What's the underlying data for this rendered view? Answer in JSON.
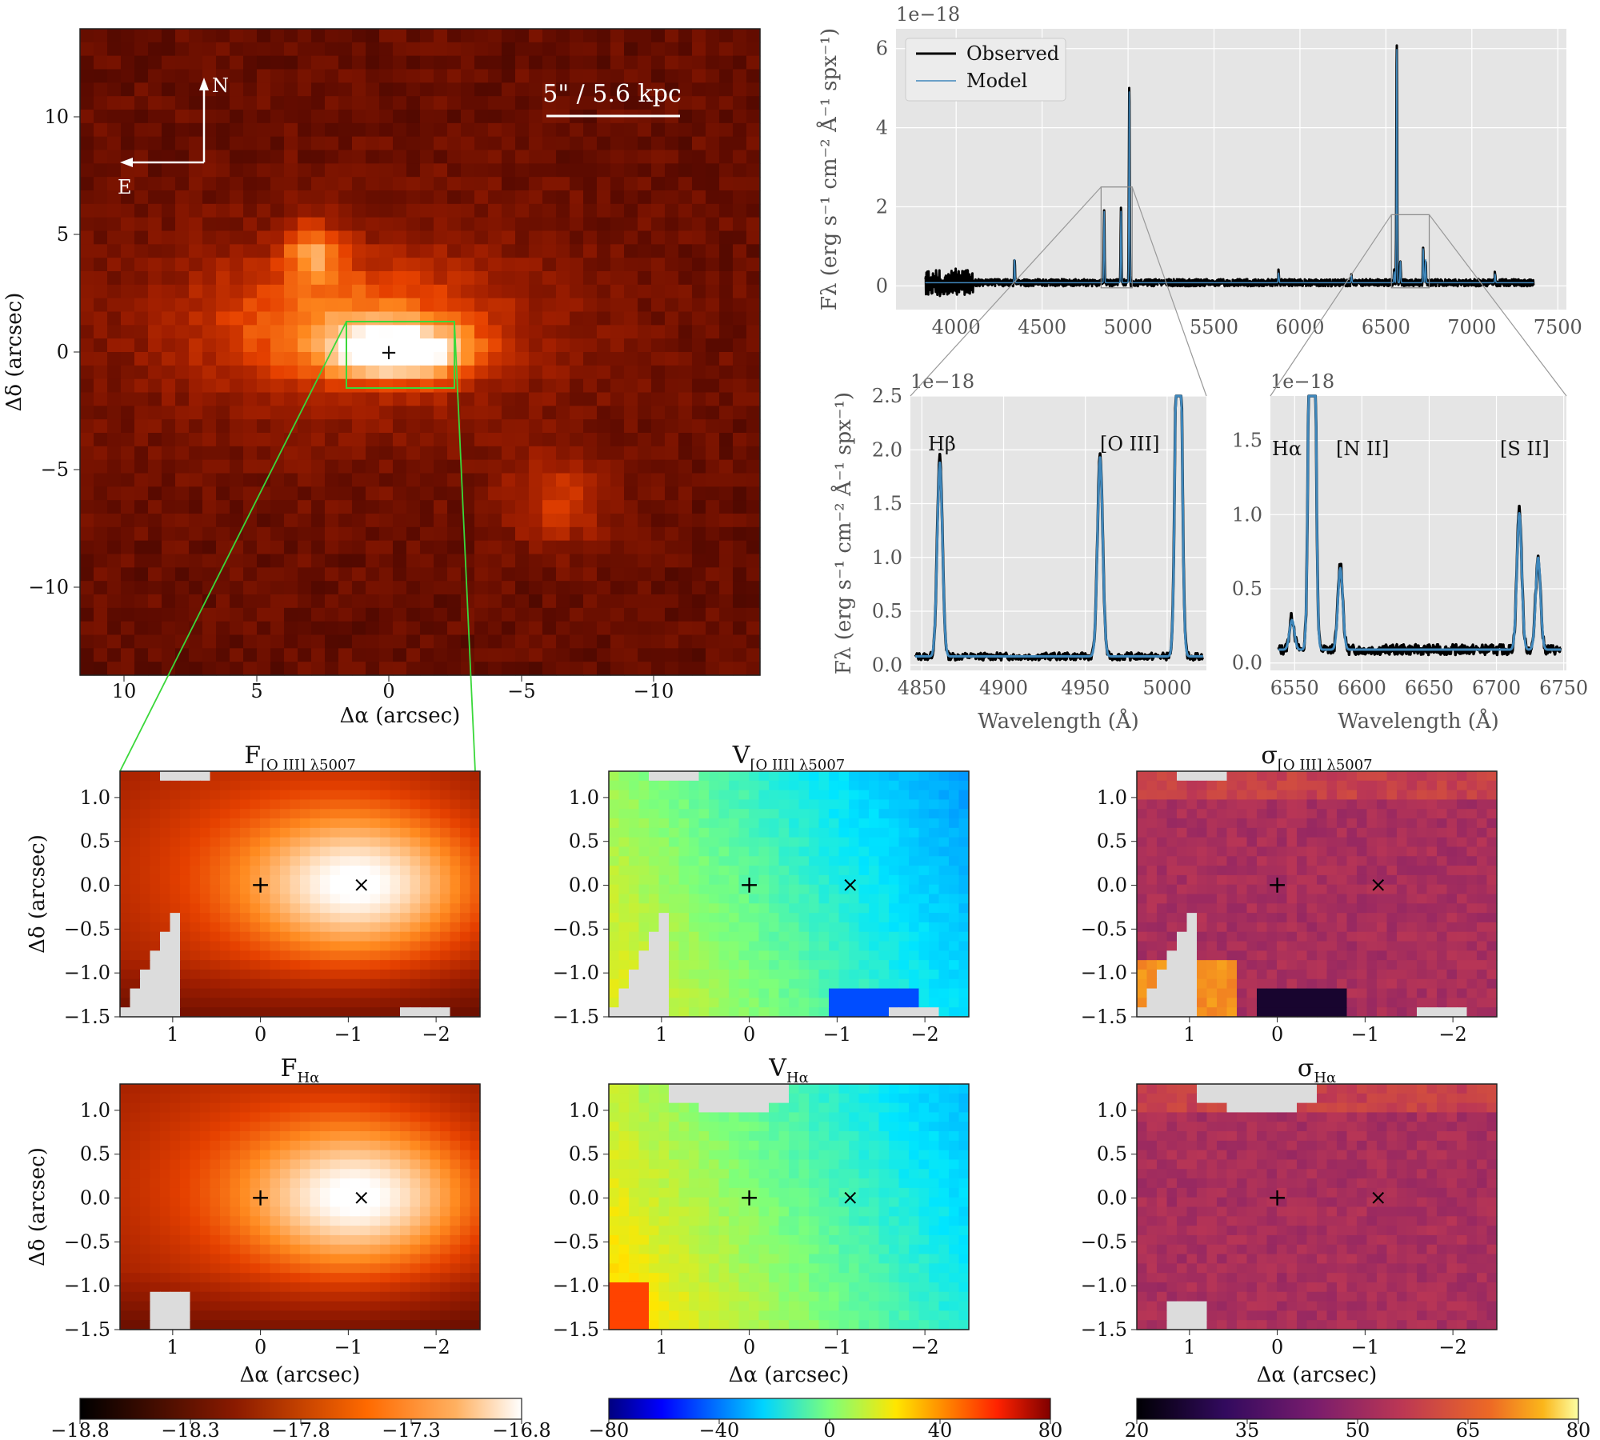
{
  "image_panel": {
    "xlabel": "Δα (arcsec)",
    "ylabel": "Δδ (arcsec)",
    "xticks": [
      "10",
      "5",
      "0",
      "−5",
      "−10"
    ],
    "yticks": [
      "10",
      "5",
      "0",
      "−5",
      "−10"
    ],
    "compass_n": "N",
    "compass_e": "E",
    "scalebar": "5\" / 5.6 kpc"
  },
  "chart_data": [
    {
      "type": "line",
      "id": "full_spectrum",
      "offset_label": "1e−18",
      "ylabel": "Fλ (erg s⁻¹ cm⁻² Å⁻¹ spx⁻¹)",
      "xlim": [
        3650,
        7550
      ],
      "ylim": [
        -0.6,
        6.5
      ],
      "xticks": [
        4000,
        4500,
        5000,
        5500,
        6000,
        6500,
        7000,
        7500
      ],
      "yticks": [
        0,
        2,
        4,
        6
      ],
      "legend": {
        "position": "top-left",
        "entries": [
          "Observed",
          "Model"
        ]
      },
      "series": [
        {
          "name": "Observed",
          "color": "#000000",
          "continuum": 0.08,
          "lines": [
            [
              4340,
              0.65
            ],
            [
              4861,
              1.82
            ],
            [
              4959,
              1.88
            ],
            [
              5007,
              5.0
            ],
            [
              5876,
              0.28
            ],
            [
              6300,
              0.2
            ],
            [
              6548,
              0.3
            ],
            [
              6563,
              6.1
            ],
            [
              6584,
              0.55
            ],
            [
              6717,
              0.9
            ],
            [
              6731,
              0.6
            ],
            [
              7135,
              0.25
            ]
          ]
        },
        {
          "name": "Model",
          "color": "#3f87bb",
          "continuum": 0.08,
          "lines": [
            [
              4340,
              0.6
            ],
            [
              4861,
              1.8
            ],
            [
              4959,
              1.85
            ],
            [
              5007,
              4.95
            ],
            [
              5876,
              0.25
            ],
            [
              6300,
              0.18
            ],
            [
              6548,
              0.28
            ],
            [
              6563,
              6.05
            ],
            [
              6584,
              0.55
            ],
            [
              6717,
              0.88
            ],
            [
              6731,
              0.6
            ],
            [
              7135,
              0.22
            ]
          ]
        }
      ]
    },
    {
      "type": "line",
      "id": "zoom_hbeta_oiii",
      "offset_label": "1e−18",
      "xlabel": "Wavelength (Å)",
      "ylabel": "Fλ (erg s⁻¹ cm⁻² Å⁻¹ spx⁻¹)",
      "xlim": [
        4843,
        5024
      ],
      "ylim": [
        -0.05,
        2.5
      ],
      "xticks": [
        4850,
        4900,
        4950,
        5000
      ],
      "yticks": [
        0.0,
        0.5,
        1.0,
        1.5,
        2.0,
        2.5
      ],
      "annotations": [
        "Hβ",
        "[O III]"
      ],
      "series": [
        {
          "name": "Observed",
          "color": "#000000",
          "continuum": 0.08,
          "lines": [
            [
              4861,
              1.85
            ],
            [
              4959,
              1.88
            ],
            [
              5007,
              5.0
            ]
          ]
        },
        {
          "name": "Model",
          "color": "#3f87bb",
          "continuum": 0.08,
          "lines": [
            [
              4861,
              1.8
            ],
            [
              4959,
              1.85
            ],
            [
              5007,
              4.95
            ]
          ]
        }
      ]
    },
    {
      "type": "line",
      "id": "zoom_halpha_nii_sii",
      "offset_label": "1e−18",
      "xlabel": "Wavelength (Å)",
      "xlim": [
        6532,
        6752
      ],
      "ylim": [
        -0.05,
        1.8
      ],
      "xticks": [
        6550,
        6600,
        6650,
        6700,
        6750
      ],
      "yticks": [
        0.0,
        0.5,
        1.0,
        1.5
      ],
      "annotations": [
        "Hα",
        "[N II]",
        "[S II]"
      ],
      "series": [
        {
          "name": "Observed",
          "color": "#000000",
          "continuum": 0.09,
          "lines": [
            [
              6548,
              0.22
            ],
            [
              6563,
              6.1
            ],
            [
              6584,
              0.58
            ],
            [
              6717,
              0.95
            ],
            [
              6731,
              0.63
            ]
          ]
        },
        {
          "name": "Model",
          "color": "#3f87bb",
          "continuum": 0.09,
          "lines": [
            [
              6548,
              0.2
            ],
            [
              6563,
              6.05
            ],
            [
              6584,
              0.55
            ],
            [
              6717,
              0.92
            ],
            [
              6731,
              0.62
            ]
          ]
        }
      ]
    },
    {
      "type": "heatmap",
      "id": "maps",
      "xlim": [
        1.6,
        -2.5
      ],
      "ylim": [
        -1.5,
        1.3
      ],
      "xticks": [
        "1",
        "0",
        "−1",
        "−2"
      ],
      "yticks": [
        "1.0",
        "0.5",
        "0.0",
        "−0.5",
        "−1.0",
        "−1.5"
      ],
      "xlabel": "Δα (arcsec)",
      "ylabel": "Δδ (arcsec)",
      "ylabel_bottom": "Δδ  (arcsec)",
      "peak_offset": [
        -1.15,
        0.0
      ],
      "panels": [
        {
          "title": "F",
          "sub": "[O III] λ5007",
          "cmap": "gist_heat"
        },
        {
          "title": "V",
          "sub": "[O III] λ5007",
          "cmap": "jet"
        },
        {
          "title": "σ",
          "sub": "[O III] λ5007",
          "cmap": "inferno"
        },
        {
          "title": "F",
          "sub": "Hα",
          "cmap": "gist_heat"
        },
        {
          "title": "V",
          "sub": "Hα",
          "cmap": "jet"
        },
        {
          "title": "σ",
          "sub": "Hα",
          "cmap": "inferno"
        }
      ],
      "colorbars": [
        {
          "cmap": "gist_heat",
          "ticks": [
            "−18.8",
            "−18.3",
            "−17.8",
            "−17.3",
            "−16.8"
          ]
        },
        {
          "cmap": "jet",
          "ticks": [
            "−80",
            "−40",
            "0",
            "40",
            "80"
          ]
        },
        {
          "cmap": "inferno",
          "ticks": [
            "20",
            "35",
            "50",
            "65",
            "80"
          ]
        }
      ]
    }
  ]
}
